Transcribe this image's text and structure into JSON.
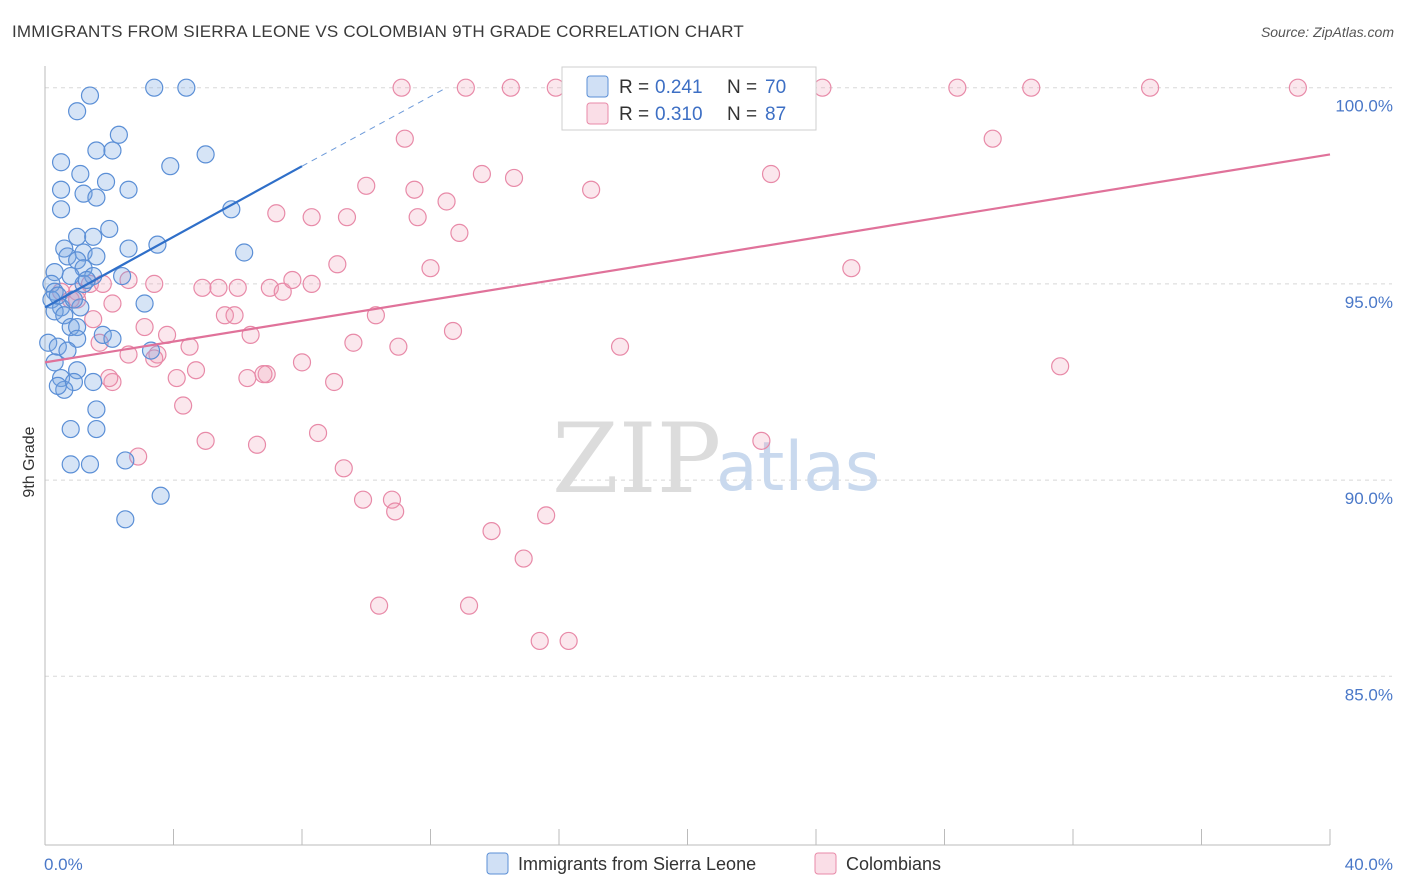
{
  "title": "IMMIGRANTS FROM SIERRA LEONE VS COLOMBIAN 9TH GRADE CORRELATION CHART",
  "source": "Source: ZipAtlas.com",
  "watermark": {
    "zip": "ZIP",
    "atlas": "atlas"
  },
  "colors": {
    "blue": "#5b8fd6",
    "blue_fill": "rgba(120,165,225,0.30)",
    "blue_line": "#2f6fc9",
    "pink": "#e88aa8",
    "pink_fill": "rgba(240,160,185,0.25)",
    "pink_line": "#e0729a",
    "grid": "#d8d8d8",
    "tick": "#4a78c8"
  },
  "legend": {
    "r_label": "R =",
    "n_label": "N =",
    "blue": {
      "r": "0.241",
      "n": "70"
    },
    "pink": {
      "r": "0.310",
      "n": "87"
    }
  },
  "bottom_legend": {
    "blue": "Immigrants from Sierra Leone",
    "pink": "Colombians"
  },
  "chart_data": {
    "type": "scatter",
    "title": "IMMIGRANTS FROM SIERRA LEONE VS COLOMBIAN 9TH GRADE CORRELATION CHART",
    "xlabel": "",
    "ylabel": "9th Grade",
    "xlim": [
      0,
      40
    ],
    "ylim": [
      80.7,
      100.4
    ],
    "x_tick_labels": {
      "0": "0.0%",
      "40": "40.0%"
    },
    "y_ticks": [
      {
        "v": 100,
        "label": "100.0%"
      },
      {
        "v": 95,
        "label": "95.0%"
      },
      {
        "v": 90,
        "label": "90.0%"
      },
      {
        "v": 85,
        "label": "85.0%"
      }
    ],
    "series": [
      {
        "name": "Immigrants from Sierra Leone",
        "color": "blue",
        "trend": {
          "x0": 0,
          "y0": 94.4,
          "x1": 8.0,
          "y1": 98.0,
          "dash_to_x": 12.5,
          "dash_to_y": 100.0
        },
        "points": [
          [
            3.4,
            100.0
          ],
          [
            4.4,
            100.0
          ],
          [
            1.4,
            99.8
          ],
          [
            1.0,
            99.4
          ],
          [
            2.3,
            98.8
          ],
          [
            1.6,
            98.4
          ],
          [
            2.1,
            98.4
          ],
          [
            5.0,
            98.3
          ],
          [
            0.5,
            98.1
          ],
          [
            3.9,
            98.0
          ],
          [
            1.1,
            97.8
          ],
          [
            1.9,
            97.6
          ],
          [
            0.5,
            97.4
          ],
          [
            2.6,
            97.4
          ],
          [
            1.2,
            97.3
          ],
          [
            1.6,
            97.2
          ],
          [
            5.8,
            96.9
          ],
          [
            0.5,
            96.9
          ],
          [
            2.0,
            96.4
          ],
          [
            1.0,
            96.2
          ],
          [
            1.5,
            96.2
          ],
          [
            2.6,
            95.9
          ],
          [
            3.5,
            96.0
          ],
          [
            0.6,
            95.9
          ],
          [
            1.2,
            95.8
          ],
          [
            6.2,
            95.8
          ],
          [
            0.7,
            95.7
          ],
          [
            1.6,
            95.7
          ],
          [
            1.0,
            95.6
          ],
          [
            0.3,
            95.3
          ],
          [
            1.2,
            95.4
          ],
          [
            1.5,
            95.2
          ],
          [
            0.8,
            95.2
          ],
          [
            2.4,
            95.2
          ],
          [
            1.2,
            95.0
          ],
          [
            0.2,
            95.0
          ],
          [
            0.3,
            94.8
          ],
          [
            0.2,
            94.6
          ],
          [
            3.1,
            94.5
          ],
          [
            1.1,
            94.4
          ],
          [
            0.5,
            94.4
          ],
          [
            0.3,
            94.3
          ],
          [
            0.6,
            94.2
          ],
          [
            0.8,
            93.9
          ],
          [
            1.0,
            93.9
          ],
          [
            1.8,
            93.7
          ],
          [
            2.1,
            93.6
          ],
          [
            1.0,
            93.6
          ],
          [
            0.1,
            93.5
          ],
          [
            0.4,
            93.4
          ],
          [
            0.7,
            93.3
          ],
          [
            3.3,
            93.3
          ],
          [
            0.3,
            93.0
          ],
          [
            1.0,
            92.8
          ],
          [
            0.5,
            92.6
          ],
          [
            1.5,
            92.5
          ],
          [
            0.9,
            92.5
          ],
          [
            0.6,
            92.3
          ],
          [
            0.4,
            92.4
          ],
          [
            1.6,
            91.8
          ],
          [
            0.8,
            91.3
          ],
          [
            1.6,
            91.3
          ],
          [
            2.5,
            90.5
          ],
          [
            0.8,
            90.4
          ],
          [
            1.4,
            90.4
          ],
          [
            3.6,
            89.6
          ],
          [
            2.5,
            89.0
          ],
          [
            0.4,
            94.7
          ],
          [
            1.3,
            95.1
          ],
          [
            0.9,
            94.6
          ]
        ]
      },
      {
        "name": "Colombians",
        "color": "pink",
        "trend": {
          "x0": 0,
          "y0": 93.0,
          "x1": 40.0,
          "y1": 98.3
        },
        "points": [
          [
            11.1,
            100.0
          ],
          [
            13.1,
            100.0
          ],
          [
            14.5,
            100.0
          ],
          [
            15.9,
            100.0
          ],
          [
            20.0,
            100.0
          ],
          [
            21.0,
            100.0
          ],
          [
            24.2,
            100.0
          ],
          [
            28.4,
            100.0
          ],
          [
            30.7,
            100.0
          ],
          [
            34.4,
            100.0
          ],
          [
            39.0,
            100.0
          ],
          [
            11.2,
            98.7
          ],
          [
            29.5,
            98.7
          ],
          [
            13.6,
            97.8
          ],
          [
            14.6,
            97.7
          ],
          [
            22.6,
            97.8
          ],
          [
            10.0,
            97.5
          ],
          [
            11.5,
            97.4
          ],
          [
            17.0,
            97.4
          ],
          [
            12.5,
            97.1
          ],
          [
            7.2,
            96.8
          ],
          [
            8.3,
            96.7
          ],
          [
            9.4,
            96.7
          ],
          [
            11.6,
            96.7
          ],
          [
            12.9,
            96.3
          ],
          [
            9.1,
            95.5
          ],
          [
            12.0,
            95.4
          ],
          [
            25.1,
            95.4
          ],
          [
            3.4,
            95.0
          ],
          [
            4.9,
            94.9
          ],
          [
            5.4,
            94.9
          ],
          [
            6.0,
            94.9
          ],
          [
            7.0,
            94.9
          ],
          [
            7.4,
            94.8
          ],
          [
            7.7,
            95.1
          ],
          [
            8.3,
            95.0
          ],
          [
            2.6,
            95.1
          ],
          [
            1.4,
            95.0
          ],
          [
            1.0,
            94.8
          ],
          [
            0.5,
            94.8
          ],
          [
            0.8,
            94.6
          ],
          [
            2.1,
            94.5
          ],
          [
            5.6,
            94.2
          ],
          [
            5.9,
            94.2
          ],
          [
            10.3,
            94.2
          ],
          [
            1.5,
            94.1
          ],
          [
            12.7,
            93.8
          ],
          [
            3.1,
            93.9
          ],
          [
            3.8,
            93.7
          ],
          [
            6.4,
            93.7
          ],
          [
            1.7,
            93.5
          ],
          [
            4.5,
            93.4
          ],
          [
            11.0,
            93.4
          ],
          [
            17.9,
            93.4
          ],
          [
            2.6,
            93.2
          ],
          [
            3.5,
            93.2
          ],
          [
            3.4,
            93.1
          ],
          [
            8.0,
            93.0
          ],
          [
            31.6,
            92.9
          ],
          [
            4.7,
            92.8
          ],
          [
            6.9,
            92.7
          ],
          [
            6.3,
            92.6
          ],
          [
            2.1,
            92.5
          ],
          [
            4.1,
            92.6
          ],
          [
            9.0,
            92.5
          ],
          [
            4.3,
            91.9
          ],
          [
            8.5,
            91.2
          ],
          [
            5.0,
            91.0
          ],
          [
            6.6,
            90.9
          ],
          [
            22.3,
            91.0
          ],
          [
            2.9,
            90.6
          ],
          [
            9.3,
            90.3
          ],
          [
            9.9,
            89.5
          ],
          [
            10.8,
            89.5
          ],
          [
            10.9,
            89.2
          ],
          [
            15.6,
            89.1
          ],
          [
            13.9,
            88.7
          ],
          [
            14.9,
            88.0
          ],
          [
            10.4,
            86.8
          ],
          [
            13.2,
            86.8
          ],
          [
            15.4,
            85.9
          ],
          [
            16.3,
            85.9
          ],
          [
            2.0,
            92.6
          ],
          [
            1.0,
            94.6
          ],
          [
            1.8,
            95.0
          ],
          [
            9.6,
            93.5
          ],
          [
            6.8,
            92.7
          ]
        ]
      }
    ]
  }
}
